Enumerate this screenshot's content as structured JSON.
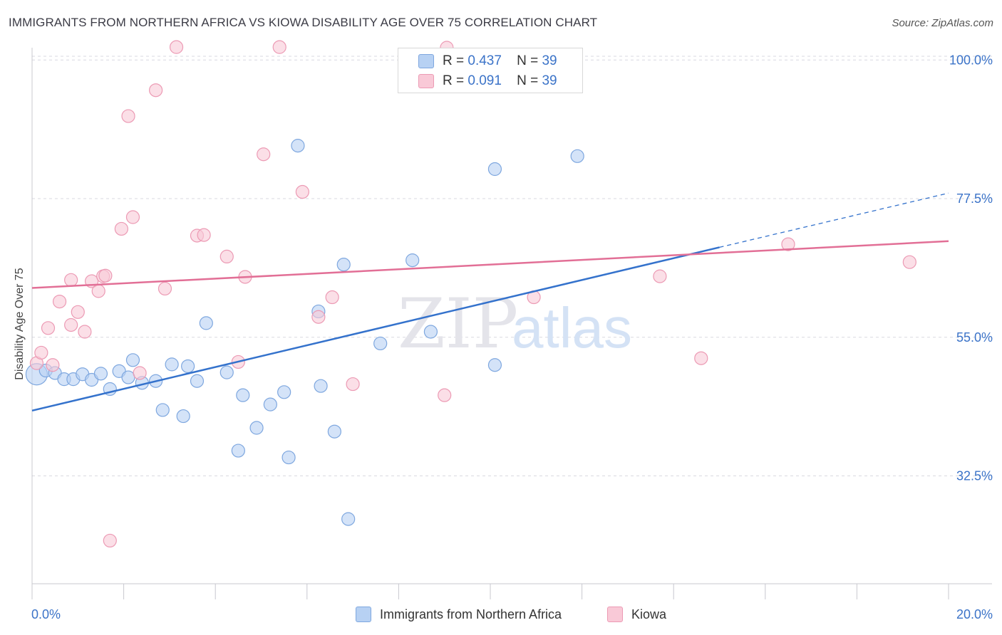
{
  "title": "IMMIGRANTS FROM NORTHERN AFRICA VS KIOWA DISABILITY AGE OVER 75 CORRELATION CHART",
  "source": "Source: ZipAtlas.com",
  "watermark": {
    "zip": "ZIP",
    "atlas": "atlas"
  },
  "legend_top": {
    "rows": [
      {
        "r_label": "R =",
        "r_value": "0.437",
        "n_label": "N =",
        "n_value": "39"
      },
      {
        "r_label": "R =",
        "r_value": "0.091",
        "n_label": "N =",
        "n_value": "39"
      }
    ]
  },
  "colors": {
    "blue_fill": "#b7d1f3",
    "blue_stroke": "#7ea7df",
    "blue_line": "#3472cc",
    "pink_fill": "#f9c9d7",
    "pink_stroke": "#ec9ab4",
    "pink_line": "#e26f96",
    "axis_text": "#3b73c8",
    "grid": "#d9d9e0"
  },
  "chart_data": {
    "type": "scatter",
    "title": "IMMIGRANTS FROM NORTHERN AFRICA VS KIOWA DISABILITY AGE OVER 75 CORRELATION CHART",
    "ylabel": "Disability Age Over 75",
    "xlabel": "",
    "xlim": [
      0,
      20
    ],
    "ylim": [
      15,
      102
    ],
    "x_tick_labels": [
      "0.0%",
      "20.0%"
    ],
    "y_ticks": [
      32.5,
      55.0,
      77.5,
      100.0
    ],
    "y_tick_labels": [
      "32.5%",
      "55.0%",
      "77.5%",
      "100.0%"
    ],
    "grid": true,
    "legend_position": "bottom",
    "series": [
      {
        "name": "Immigrants from Northern Africa",
        "color": "#7ea7df",
        "r": 0.437,
        "n": 39,
        "trend": {
          "x0": 0,
          "y0": 43.1,
          "x1": 15.0,
          "y1": 69.6,
          "dashed_to_x": 20.0,
          "dashed_to_y": 78.4
        },
        "points": [
          {
            "x": 0.1,
            "y": 49.0,
            "big": true
          },
          {
            "x": 0.3,
            "y": 49.6
          },
          {
            "x": 0.5,
            "y": 49.2
          },
          {
            "x": 0.7,
            "y": 48.2
          },
          {
            "x": 0.9,
            "y": 48.2
          },
          {
            "x": 1.1,
            "y": 49.0
          },
          {
            "x": 1.3,
            "y": 48.1
          },
          {
            "x": 1.5,
            "y": 49.1
          },
          {
            "x": 1.7,
            "y": 46.6
          },
          {
            "x": 1.9,
            "y": 49.5
          },
          {
            "x": 2.1,
            "y": 48.5
          },
          {
            "x": 2.2,
            "y": 51.3
          },
          {
            "x": 2.4,
            "y": 47.6
          },
          {
            "x": 2.7,
            "y": 47.9
          },
          {
            "x": 2.85,
            "y": 43.2
          },
          {
            "x": 3.05,
            "y": 50.6
          },
          {
            "x": 3.3,
            "y": 42.2
          },
          {
            "x": 3.4,
            "y": 50.3
          },
          {
            "x": 3.6,
            "y": 47.9
          },
          {
            "x": 3.8,
            "y": 57.3
          },
          {
            "x": 4.25,
            "y": 49.3
          },
          {
            "x": 4.5,
            "y": 36.6
          },
          {
            "x": 4.6,
            "y": 45.6
          },
          {
            "x": 4.9,
            "y": 40.3
          },
          {
            "x": 5.2,
            "y": 44.1
          },
          {
            "x": 5.5,
            "y": 46.1
          },
          {
            "x": 5.6,
            "y": 35.5
          },
          {
            "x": 5.8,
            "y": 86.1
          },
          {
            "x": 6.25,
            "y": 59.2
          },
          {
            "x": 6.3,
            "y": 47.1
          },
          {
            "x": 6.6,
            "y": 39.7
          },
          {
            "x": 6.8,
            "y": 66.8
          },
          {
            "x": 6.9,
            "y": 25.5
          },
          {
            "x": 7.6,
            "y": 54.0
          },
          {
            "x": 8.3,
            "y": 67.5
          },
          {
            "x": 8.7,
            "y": 55.9
          },
          {
            "x": 10.1,
            "y": 50.5
          },
          {
            "x": 10.1,
            "y": 82.3
          },
          {
            "x": 11.9,
            "y": 84.4
          }
        ]
      },
      {
        "name": "Kiowa",
        "color": "#ec9ab4",
        "r": 0.091,
        "n": 39,
        "trend": {
          "x0": 0,
          "y0": 63.0,
          "x1": 20.0,
          "y1": 70.6
        },
        "points": [
          {
            "x": 0.1,
            "y": 50.8
          },
          {
            "x": 0.2,
            "y": 52.5
          },
          {
            "x": 0.35,
            "y": 56.5
          },
          {
            "x": 0.45,
            "y": 50.5
          },
          {
            "x": 0.6,
            "y": 60.8
          },
          {
            "x": 0.85,
            "y": 64.3
          },
          {
            "x": 0.85,
            "y": 57.0
          },
          {
            "x": 1.0,
            "y": 59.1
          },
          {
            "x": 1.15,
            "y": 55.9
          },
          {
            "x": 1.3,
            "y": 64.1
          },
          {
            "x": 1.45,
            "y": 62.5
          },
          {
            "x": 1.55,
            "y": 64.9
          },
          {
            "x": 1.6,
            "y": 65.0
          },
          {
            "x": 1.7,
            "y": 22.0
          },
          {
            "x": 1.95,
            "y": 72.6
          },
          {
            "x": 2.1,
            "y": 90.9
          },
          {
            "x": 2.2,
            "y": 74.5
          },
          {
            "x": 2.35,
            "y": 49.2
          },
          {
            "x": 2.7,
            "y": 95.1
          },
          {
            "x": 2.9,
            "y": 62.9
          },
          {
            "x": 3.15,
            "y": 102.1
          },
          {
            "x": 3.6,
            "y": 71.5
          },
          {
            "x": 3.75,
            "y": 71.6
          },
          {
            "x": 4.25,
            "y": 68.1
          },
          {
            "x": 4.5,
            "y": 51.0
          },
          {
            "x": 4.65,
            "y": 64.8
          },
          {
            "x": 5.05,
            "y": 84.7
          },
          {
            "x": 5.4,
            "y": 102.1
          },
          {
            "x": 5.9,
            "y": 78.6
          },
          {
            "x": 6.25,
            "y": 58.3
          },
          {
            "x": 6.55,
            "y": 61.5
          },
          {
            "x": 7.0,
            "y": 47.4
          },
          {
            "x": 9.0,
            "y": 45.6
          },
          {
            "x": 9.05,
            "y": 102.0
          },
          {
            "x": 10.95,
            "y": 61.5
          },
          {
            "x": 13.7,
            "y": 64.9
          },
          {
            "x": 14.6,
            "y": 51.6
          },
          {
            "x": 16.5,
            "y": 70.1
          },
          {
            "x": 19.15,
            "y": 67.2
          }
        ]
      }
    ]
  }
}
